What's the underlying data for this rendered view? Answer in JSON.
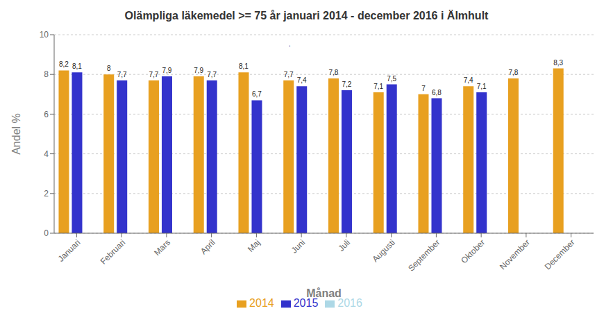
{
  "chart_data": {
    "type": "bar",
    "title": "Olämpliga läkemedel >= 75 år januari 2014 - december 2016 i  Älmhult",
    "xlabel": "Månad",
    "ylabel": "Andel %",
    "categories": [
      "Januari",
      "Februari",
      "Mars",
      "April",
      "Maj",
      "Juni",
      "Juli",
      "Augusti",
      "September",
      "Oktober",
      "November",
      "December"
    ],
    "series": [
      {
        "name": "2014",
        "color": "#E8A020",
        "values": [
          8.2,
          8.0,
          7.7,
          7.9,
          8.1,
          7.7,
          7.8,
          7.1,
          7.0,
          7.4,
          7.8,
          8.3
        ],
        "value_labels": [
          "8,2",
          "8",
          "7,7",
          "7,9",
          "8,1",
          "7,7",
          "7,8",
          "7,1",
          "7",
          "7,4",
          "7,8",
          "8,3"
        ]
      },
      {
        "name": "2015",
        "color": "#3333CC",
        "values": [
          8.1,
          7.7,
          7.9,
          7.7,
          6.7,
          7.4,
          7.2,
          7.5,
          6.8,
          7.1,
          null,
          null
        ],
        "value_labels": [
          "8,1",
          "7,7",
          "7,9",
          "7,7",
          "6,7",
          "7,4",
          "7,2",
          "7,5",
          "6,8",
          "7,1",
          null,
          null
        ]
      },
      {
        "name": "2016",
        "color": "#ADD8E6",
        "values": [
          null,
          null,
          null,
          null,
          null,
          null,
          null,
          null,
          null,
          null,
          null,
          null
        ]
      }
    ],
    "ylim": [
      0,
      10
    ],
    "yticks": [
      0,
      2,
      4,
      6,
      8,
      10
    ],
    "grid": true,
    "legend": "bottom",
    "data_labels": true,
    "annotations": [
      "."
    ]
  }
}
